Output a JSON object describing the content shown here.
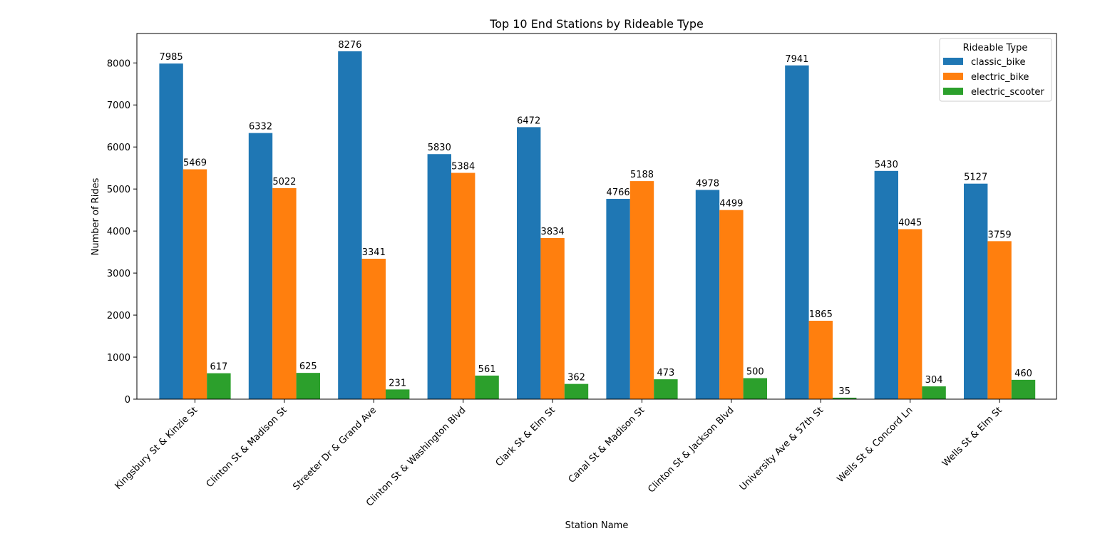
{
  "chart_data": {
    "type": "bar",
    "title": "Top 10 End Stations by Rideable Type",
    "xlabel": "Station Name",
    "ylabel": "Number of Rides",
    "ylim": [
      0,
      8700
    ],
    "yticks": [
      0,
      1000,
      2000,
      3000,
      4000,
      5000,
      6000,
      7000,
      8000
    ],
    "grid": false,
    "legend": {
      "title": "Rideable Type",
      "placement": "top-right"
    },
    "categories": [
      "Kingsbury St & Kinzie St",
      "Clinton St & Madison St",
      "Streeter Dr & Grand Ave",
      "Clinton St & Washington Blvd",
      "Clark St & Elm St",
      "Canal St & Madison St",
      "Clinton St & Jackson Blvd",
      "University Ave & 57th St",
      "Wells St & Concord Ln",
      "Wells St & Elm St"
    ],
    "series": [
      {
        "name": "classic_bike",
        "color": "#1f77b4",
        "values": [
          7985,
          6332,
          8276,
          5830,
          6472,
          4766,
          4978,
          7941,
          5430,
          5127
        ]
      },
      {
        "name": "electric_bike",
        "color": "#ff7f0e",
        "values": [
          5469,
          5022,
          3341,
          5384,
          3834,
          5188,
          4499,
          1865,
          4045,
          3759
        ]
      },
      {
        "name": "electric_scooter",
        "color": "#2ca02c",
        "values": [
          617,
          625,
          231,
          561,
          362,
          473,
          500,
          35,
          304,
          460
        ]
      }
    ]
  }
}
